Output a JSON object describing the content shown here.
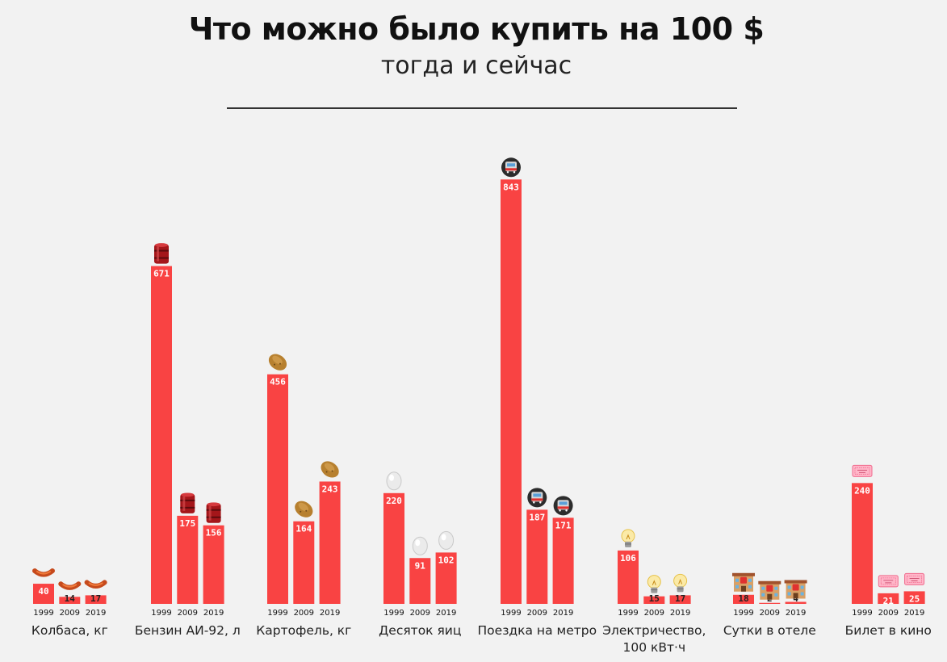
{
  "header": {
    "title": "Что можно было купить на 100 $",
    "subtitle": "тогда и сейчас"
  },
  "colors": {
    "bar": "#f94343",
    "background": "#f2f2f2",
    "rule": "#333333"
  },
  "chart_data": {
    "type": "bar",
    "title": "Что можно было купить на 100 $",
    "subtitle": "тогда и сейчас",
    "xlabel": "",
    "ylabel": "",
    "grid": false,
    "years": [
      "1999",
      "2009",
      "2019"
    ],
    "groups": [
      {
        "label": [
          "Колбаса, кг"
        ],
        "icon": "sausage-icon",
        "values": [
          40,
          14,
          17
        ]
      },
      {
        "label": [
          "Бензин АИ-92, л"
        ],
        "icon": "oil-barrel-icon",
        "values": [
          671,
          175,
          156
        ]
      },
      {
        "label": [
          "Картофель, кг"
        ],
        "icon": "potato-icon",
        "values": [
          456,
          164,
          243
        ]
      },
      {
        "label": [
          "Десяток яиц"
        ],
        "icon": "egg-icon",
        "values": [
          220,
          91,
          102
        ]
      },
      {
        "label": [
          "Поездка на метро"
        ],
        "icon": "metro-icon",
        "values": [
          843,
          187,
          171
        ]
      },
      {
        "label": [
          "Электричество,",
          "100 кВт·ч"
        ],
        "icon": "light-bulb-icon",
        "values": [
          106,
          15,
          17
        ]
      },
      {
        "label": [
          "Сутки в отеле"
        ],
        "icon": "hotel-icon",
        "values": [
          18,
          2,
          4
        ]
      },
      {
        "label": [
          "Билет в кино"
        ],
        "icon": "ticket-icon",
        "values": [
          240,
          21,
          25
        ]
      }
    ]
  }
}
